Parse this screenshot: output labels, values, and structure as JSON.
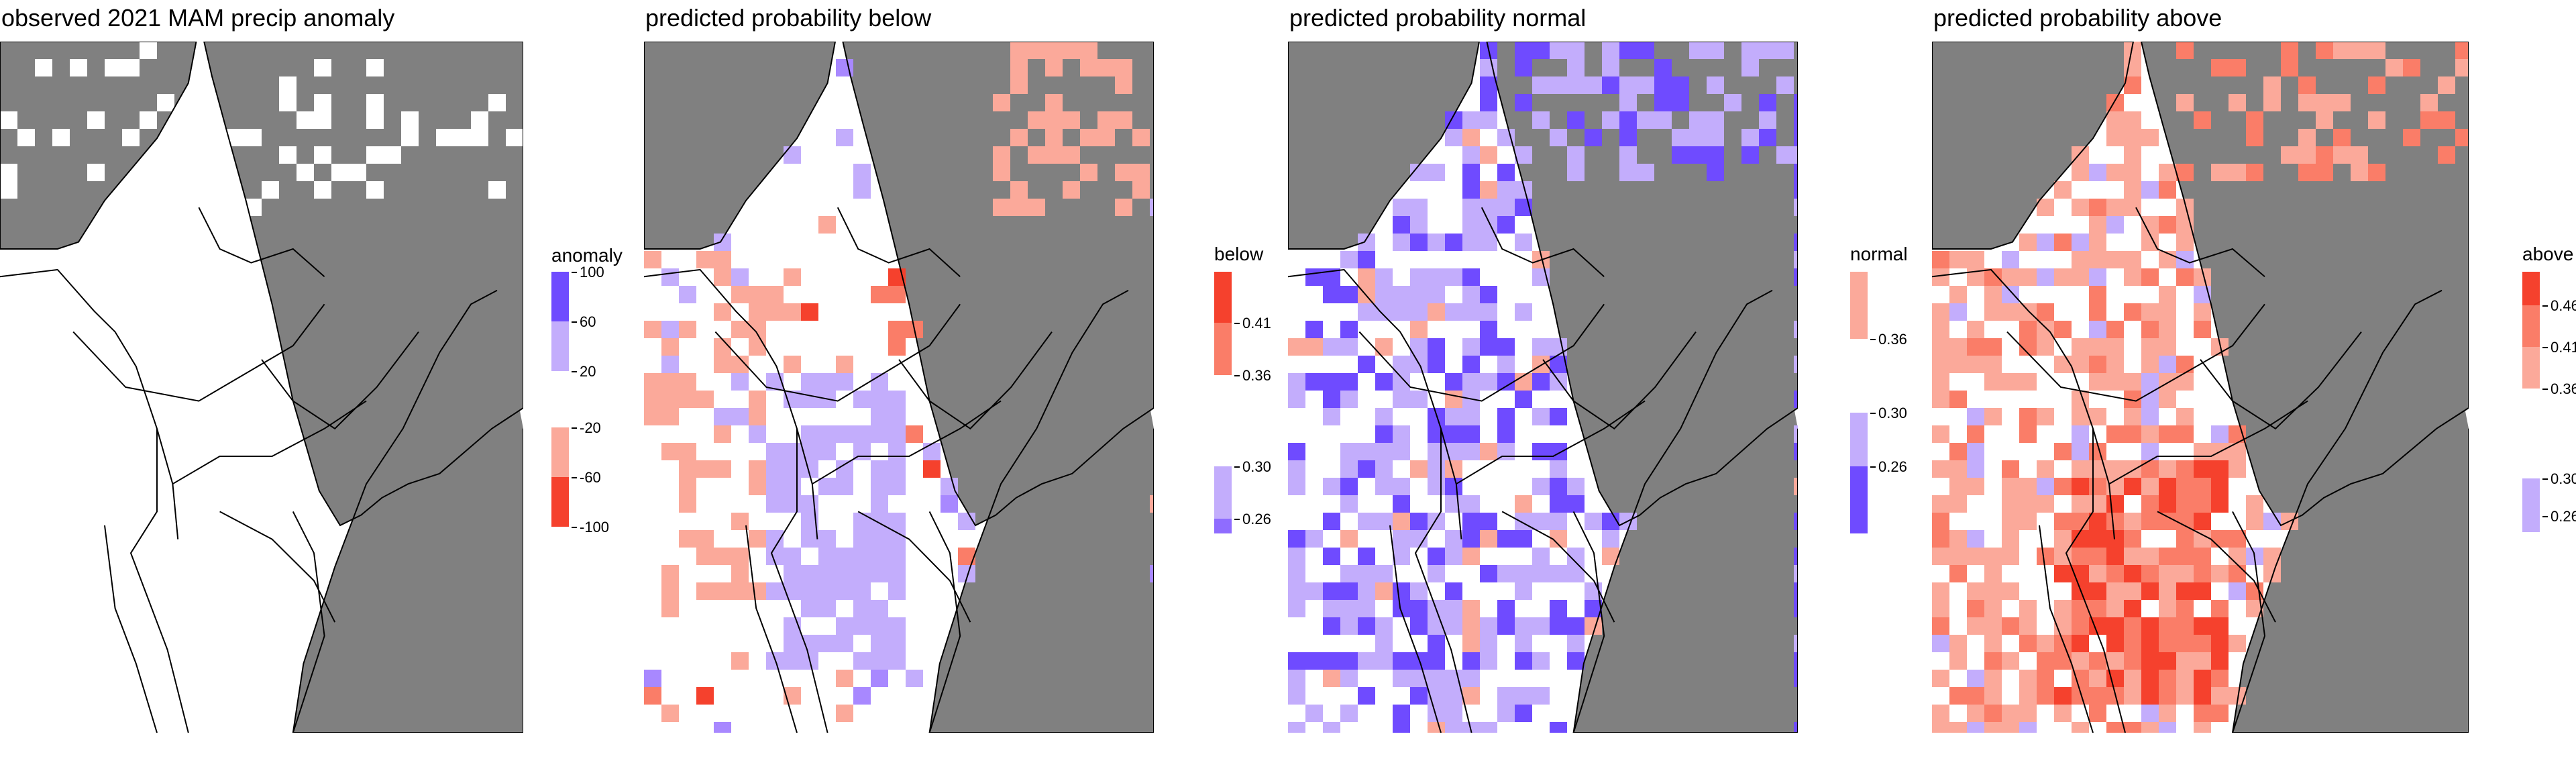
{
  "colors": {
    "land": "#ffffff",
    "ocean_mask": "#808080",
    "border": "#000000",
    "dark_blue": "#6f4bff",
    "light_blue": "#c3adfc",
    "light_red": "#fba99a",
    "mid_red": "#fa7d68",
    "dark_red": "#f5412d"
  },
  "panels": [
    {
      "title": "observed 2021 MAM precip anomaly",
      "pattern": "obs",
      "legend": {
        "title": "anomaly",
        "swatches": [
          {
            "color": "#6f4bff",
            "from": 100,
            "to": 60
          },
          {
            "color": "#c3adfc",
            "from": 60,
            "to": 20
          },
          {
            "color": "#fba99a",
            "from": -20,
            "to": -60
          },
          {
            "color": "#f5412d",
            "from": -60,
            "to": -100
          }
        ],
        "labels": [
          "100",
          "60",
          "20",
          "-20",
          "-60",
          "-100"
        ]
      }
    },
    {
      "title": "predicted probability below",
      "pattern": "below",
      "legend": {
        "title": "below",
        "swatches": [
          {
            "color": "#f5412d",
            "from": 0.46,
            "to": 0.41
          },
          {
            "color": "#fa7d68",
            "from": 0.41,
            "to": 0.36
          },
          {
            "color": "#c3adfc",
            "from": 0.3,
            "to": 0.26
          },
          {
            "color": "#8f6cff",
            "from": 0.26,
            "to": 0.24
          }
        ],
        "labels": [
          "0.41",
          "0.36",
          "0.30",
          "0.26"
        ]
      }
    },
    {
      "title": "predicted probability normal",
      "pattern": "normal",
      "legend": {
        "title": "normal",
        "swatches": [
          {
            "color": "#fba99a",
            "from": 0.4,
            "to": 0.36
          },
          {
            "color": "#c3adfc",
            "from": 0.3,
            "to": 0.26
          },
          {
            "color": "#6f4bff",
            "from": 0.26,
            "to": 0.22
          }
        ],
        "labels": [
          "0.36",
          "0.30",
          "0.26"
        ]
      }
    },
    {
      "title": "predicted probability above",
      "pattern": "above",
      "legend": {
        "title": "above",
        "swatches": [
          {
            "color": "#f5412d",
            "from": 0.5,
            "to": 0.46
          },
          {
            "color": "#fa7d68",
            "from": 0.46,
            "to": 0.41
          },
          {
            "color": "#fba99a",
            "from": 0.41,
            "to": 0.36
          },
          {
            "color": "#c3adfc",
            "from": 0.3,
            "to": 0.26
          }
        ],
        "labels": [
          "0.46",
          "0.41",
          "0.36",
          "0.30",
          "0.26"
        ]
      }
    }
  ]
}
